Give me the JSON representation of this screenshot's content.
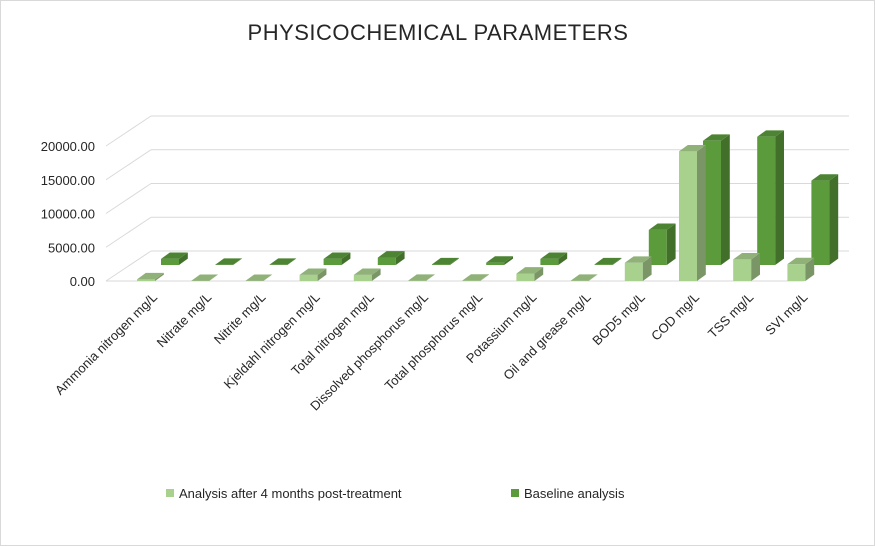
{
  "chart_data": {
    "type": "bar",
    "title": "PHYSICOCHEMICAL  PARAMETERS",
    "xlabel": "",
    "ylabel": "",
    "ylim": [
      0,
      20000
    ],
    "yticks": [
      "0.00",
      "5000.00",
      "10000.00",
      "15000.00",
      "20000.00"
    ],
    "grid": true,
    "legend_position": "bottom",
    "categories": [
      "Ammonia nitrogen mg/L",
      "Nitrate mg/L",
      "Nitrite mg/L",
      "Kjeldahl nitrogen mg/L",
      "Total nitrogen mg/L",
      "Dissolved phosphorus mg/L",
      "Total phosphorus mg/L",
      "Potassium mg/L",
      "Oil and grease mg/L",
      "BOD5 mg/L",
      "COD mg/L",
      "TSS mg/L",
      "SVI mg/L"
    ],
    "series": [
      {
        "name": "Analysis after 4 months post-treatment",
        "color": "#a9d18e",
        "values": [
          250,
          20,
          15,
          900,
          900,
          30,
          60,
          1100,
          40,
          2700,
          19200,
          3200,
          2500
        ]
      },
      {
        "name": "Baseline analysis",
        "color": "#5b9b3c",
        "values": [
          900,
          40,
          30,
          900,
          1100,
          100,
          350,
          900,
          100,
          5200,
          18400,
          19000,
          12500
        ]
      }
    ]
  }
}
